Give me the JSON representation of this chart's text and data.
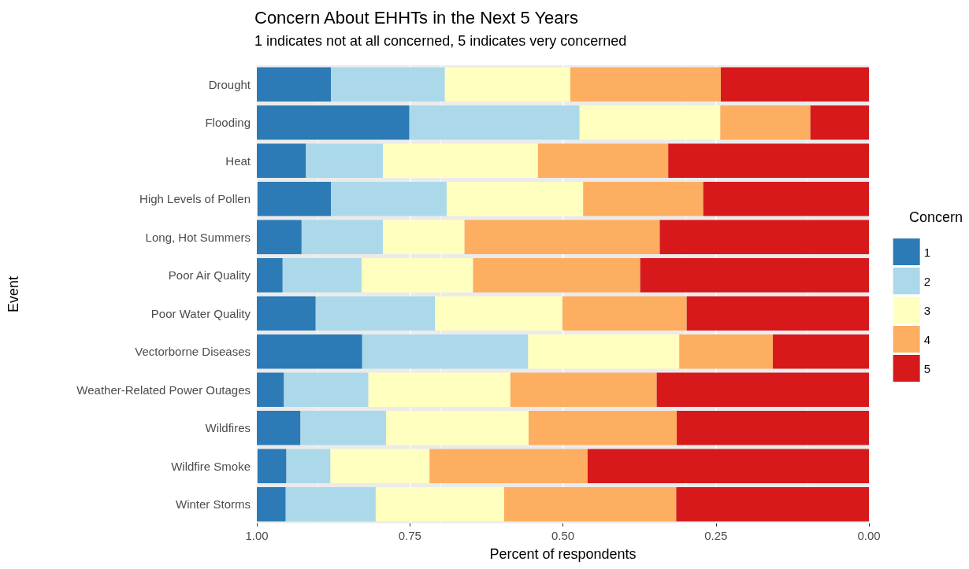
{
  "chart_data": {
    "type": "bar",
    "orientation": "horizontal",
    "stacked": true,
    "title": "Concern About EHHTs in the Next 5 Years",
    "subtitle": "1 indicates not at all concerned, 5 indicates very concerned",
    "xlabel": "Percent of respondents",
    "ylabel": "Event",
    "legend_title": "Concern",
    "legend": "right",
    "grid": "x",
    "categories": [
      "Drought",
      "Flooding",
      "Heat",
      "High Levels of Pollen",
      "Long, Hot Summers",
      "Poor Air Quality",
      "Poor Water Quality",
      "Vectorborne Diseases",
      "Weather-Related Power Outages",
      "Wildfires",
      "Wildfire Smoke",
      "Winter Storms"
    ],
    "xlim": [
      1,
      0
    ],
    "xticks": [
      {
        "value": 1,
        "label": "1.00"
      },
      {
        "value": 0.75,
        "label": "0.75"
      },
      {
        "value": 0.5,
        "label": "0.50"
      },
      {
        "value": 0.25,
        "label": "0.25"
      },
      {
        "value": 0,
        "label": "0.00"
      }
    ],
    "series": [
      {
        "name": "5",
        "color": "#d7191c",
        "values": [
          0.242,
          0.096,
          0.328,
          0.271,
          0.342,
          0.374,
          0.298,
          0.157,
          0.347,
          0.314,
          0.46,
          0.315
        ]
      },
      {
        "name": "4",
        "color": "#fdae61",
        "values": [
          0.246,
          0.147,
          0.213,
          0.196,
          0.319,
          0.273,
          0.203,
          0.153,
          0.239,
          0.242,
          0.258,
          0.281
        ]
      },
      {
        "name": "3",
        "color": "#ffffbf",
        "values": [
          0.205,
          0.23,
          0.253,
          0.223,
          0.133,
          0.182,
          0.208,
          0.247,
          0.232,
          0.233,
          0.162,
          0.21
        ]
      },
      {
        "name": "2",
        "color": "#abd9e9",
        "values": [
          0.186,
          0.278,
          0.126,
          0.189,
          0.133,
          0.129,
          0.195,
          0.271,
          0.138,
          0.14,
          0.072,
          0.147
        ]
      },
      {
        "name": "1",
        "color": "#2c7bb6",
        "values": [
          0.121,
          0.249,
          0.081,
          0.12,
          0.073,
          0.042,
          0.096,
          0.172,
          0.044,
          0.072,
          0.047,
          0.047
        ]
      }
    ]
  }
}
